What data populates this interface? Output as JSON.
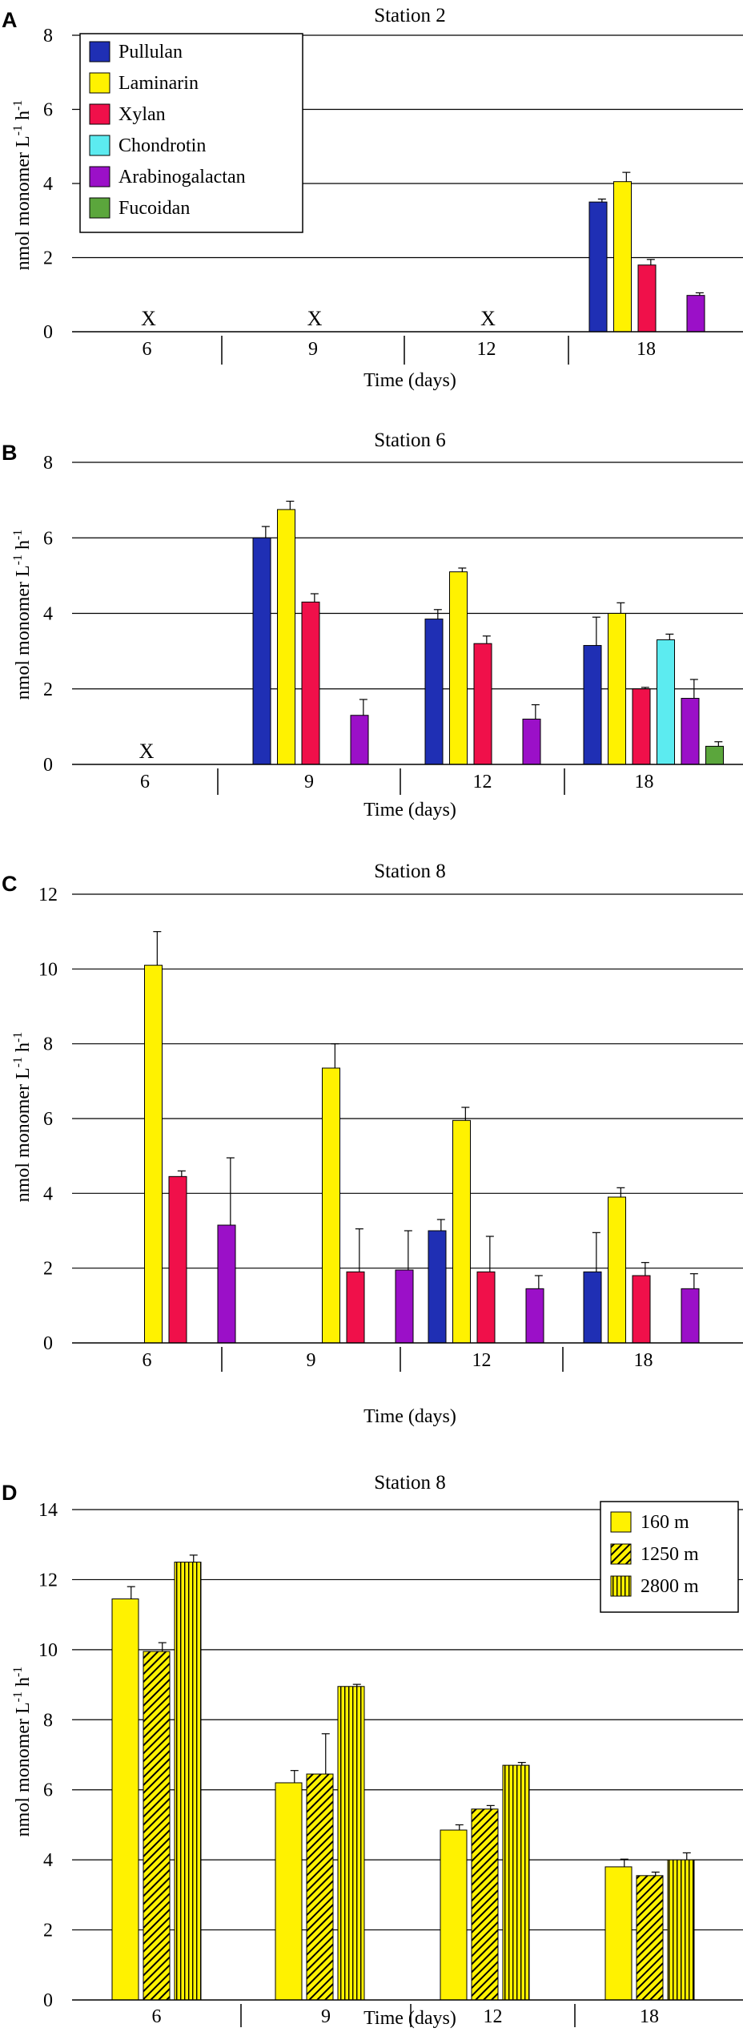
{
  "colors": {
    "pullulan": "#1f2fb4",
    "laminarin": "#fff200",
    "xylan": "#f0104a",
    "chondrotin": "#5cebf0",
    "arabinogalactan": "#9b10c8",
    "fucoidan": "#5ba63c",
    "depth_fill": "#fff200"
  },
  "chart_data": [
    {
      "panel": "A",
      "type": "bar",
      "title": "Station 2",
      "xlabel": "Time (days)",
      "ylabel": "nmol monomer L-1 h-1",
      "ylim": [
        0,
        8
      ],
      "yticks": [
        "0",
        "2",
        "4",
        "6",
        "8"
      ],
      "categories": [
        "6",
        "9",
        "12",
        "18"
      ],
      "missing_marker": "X",
      "missing": [
        true,
        true,
        true,
        false
      ],
      "legend": [
        "Pullulan",
        "Laminarin",
        "Xylan",
        "Chondrotin",
        "Arabinogalactan",
        "Fucoidan"
      ],
      "legend_position": "top-left",
      "series": [
        {
          "name": "Pullulan",
          "key": "pullulan",
          "values": [
            null,
            null,
            null,
            3.5
          ],
          "errors": [
            null,
            null,
            null,
            0.08
          ]
        },
        {
          "name": "Laminarin",
          "key": "laminarin",
          "values": [
            null,
            null,
            null,
            4.05
          ],
          "errors": [
            null,
            null,
            null,
            0.25
          ]
        },
        {
          "name": "Xylan",
          "key": "xylan",
          "values": [
            null,
            null,
            null,
            1.8
          ],
          "errors": [
            null,
            null,
            null,
            0.15
          ]
        },
        {
          "name": "Chondrotin",
          "key": "chondrotin",
          "values": [
            null,
            null,
            null,
            null
          ],
          "errors": [
            null,
            null,
            null,
            null
          ]
        },
        {
          "name": "Arabinogalactan",
          "key": "arabinogalactan",
          "values": [
            null,
            null,
            null,
            0.98
          ],
          "errors": [
            null,
            null,
            null,
            0.07
          ]
        },
        {
          "name": "Fucoidan",
          "key": "fucoidan",
          "values": [
            null,
            null,
            null,
            null
          ],
          "errors": [
            null,
            null,
            null,
            null
          ]
        }
      ]
    },
    {
      "panel": "B",
      "type": "bar",
      "title": "Station 6",
      "xlabel": "Time (days)",
      "ylabel": "nmol monomer L-1 h-1",
      "ylim": [
        0,
        8
      ],
      "yticks": [
        "0",
        "2",
        "4",
        "6",
        "8"
      ],
      "categories": [
        "6",
        "9",
        "12",
        "18"
      ],
      "missing_marker": "X",
      "missing": [
        true,
        false,
        false,
        false
      ],
      "series": [
        {
          "name": "Pullulan",
          "key": "pullulan",
          "values": [
            null,
            6.0,
            3.85,
            3.15
          ],
          "errors": [
            null,
            0.3,
            0.25,
            0.75
          ]
        },
        {
          "name": "Laminarin",
          "key": "laminarin",
          "values": [
            null,
            6.75,
            5.1,
            4.0
          ],
          "errors": [
            null,
            0.22,
            0.1,
            0.28
          ]
        },
        {
          "name": "Xylan",
          "key": "xylan",
          "values": [
            null,
            4.3,
            3.2,
            2.0
          ],
          "errors": [
            null,
            0.22,
            0.2,
            0.04
          ]
        },
        {
          "name": "Chondrotin",
          "key": "chondrotin",
          "values": [
            null,
            null,
            null,
            3.3
          ],
          "errors": [
            null,
            null,
            null,
            0.15
          ]
        },
        {
          "name": "Arabinogalactan",
          "key": "arabinogalactan",
          "values": [
            null,
            1.3,
            1.2,
            1.75
          ],
          "errors": [
            null,
            0.42,
            0.38,
            0.5
          ]
        },
        {
          "name": "Fucoidan",
          "key": "fucoidan",
          "values": [
            null,
            null,
            null,
            0.48
          ],
          "errors": [
            null,
            null,
            null,
            0.12
          ]
        }
      ]
    },
    {
      "panel": "C",
      "type": "bar",
      "title": "Station 8",
      "xlabel": "Time (days)",
      "ylabel": "nmol monomer L-1 h-1",
      "ylim": [
        0,
        12
      ],
      "yticks": [
        "0",
        "2",
        "4",
        "6",
        "8",
        "10",
        "12"
      ],
      "categories": [
        "6",
        "9",
        "12",
        "18"
      ],
      "missing": [
        false,
        false,
        false,
        false
      ],
      "series": [
        {
          "name": "Pullulan",
          "key": "pullulan",
          "values": [
            null,
            null,
            3.0,
            1.9
          ],
          "errors": [
            null,
            null,
            0.3,
            1.05
          ]
        },
        {
          "name": "Laminarin",
          "key": "laminarin",
          "values": [
            10.1,
            7.35,
            5.95,
            3.9
          ],
          "errors": [
            0.9,
            0.65,
            0.35,
            0.25
          ]
        },
        {
          "name": "Xylan",
          "key": "xylan",
          "values": [
            4.45,
            1.9,
            1.9,
            1.8
          ],
          "errors": [
            0.15,
            1.15,
            0.95,
            0.35
          ]
        },
        {
          "name": "Chondrotin",
          "key": "chondrotin",
          "values": [
            null,
            null,
            null,
            null
          ],
          "errors": [
            null,
            null,
            null,
            null
          ]
        },
        {
          "name": "Arabinogalactan",
          "key": "arabinogalactan",
          "values": [
            3.15,
            1.95,
            1.45,
            1.45
          ],
          "errors": [
            1.8,
            1.05,
            0.35,
            0.4
          ]
        },
        {
          "name": "Fucoidan",
          "key": "fucoidan",
          "values": [
            null,
            null,
            null,
            null
          ],
          "errors": [
            null,
            null,
            null,
            null
          ]
        }
      ]
    },
    {
      "panel": "D",
      "type": "bar",
      "title": "Station 8",
      "xlabel": "Time (days)",
      "ylabel": "nmol monomer L-1 h-1",
      "ylim": [
        0,
        14
      ],
      "yticks": [
        "0",
        "2",
        "4",
        "6",
        "8",
        "10",
        "12",
        "14"
      ],
      "categories": [
        "6",
        "9",
        "12",
        "18"
      ],
      "missing": [
        false,
        false,
        false,
        false
      ],
      "legend": [
        "160 m",
        "1250 m",
        "2800 m"
      ],
      "legend_position": "top-right",
      "series": [
        {
          "name": "160 m",
          "key": "depth_fill",
          "pattern": "solid",
          "values": [
            11.45,
            6.2,
            4.85,
            3.8
          ],
          "errors": [
            0.35,
            0.35,
            0.15,
            0.22
          ]
        },
        {
          "name": "1250 m",
          "key": "depth_fill",
          "pattern": "diagonal",
          "values": [
            9.95,
            6.45,
            5.45,
            3.55
          ],
          "errors": [
            0.25,
            1.15,
            0.1,
            0.1
          ]
        },
        {
          "name": "2800 m",
          "key": "depth_fill",
          "pattern": "vertical",
          "values": [
            12.5,
            8.95,
            6.7,
            4.0
          ],
          "errors": [
            0.2,
            0.06,
            0.08,
            0.2
          ]
        }
      ]
    }
  ]
}
